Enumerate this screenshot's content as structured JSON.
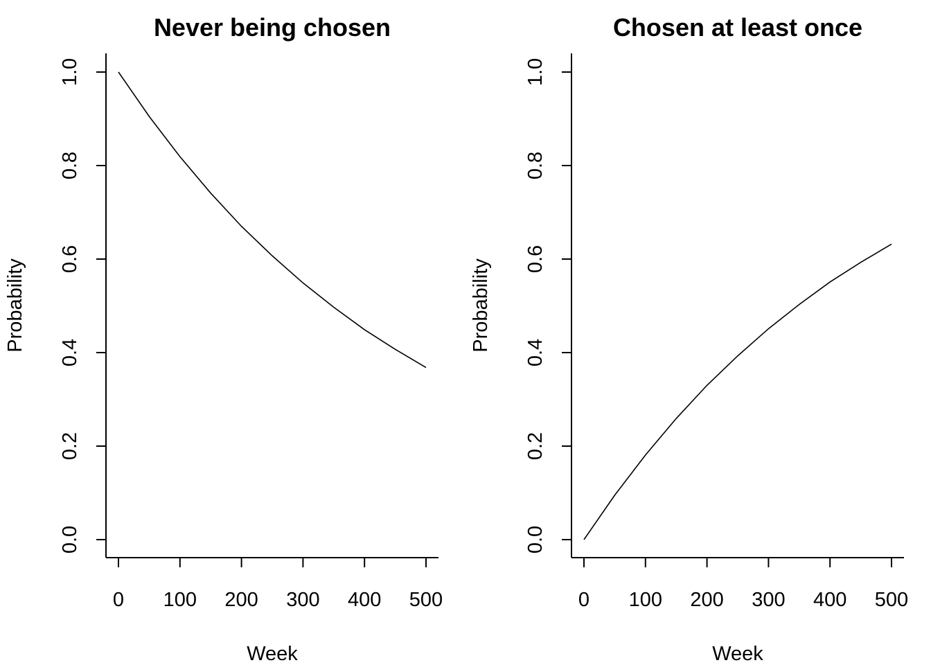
{
  "chart_data": [
    {
      "type": "line",
      "title": "Never being chosen",
      "xlabel": "Week",
      "ylabel": "Probability",
      "xlim": [
        0,
        500
      ],
      "ylim": [
        0,
        1
      ],
      "xticks": [
        0,
        100,
        200,
        300,
        400,
        500
      ],
      "yticks": [
        0.0,
        0.2,
        0.4,
        0.6,
        0.8,
        1.0
      ],
      "xtick_labels": [
        "0",
        "100",
        "200",
        "300",
        "400",
        "500"
      ],
      "ytick_labels": [
        "0.0",
        "0.2",
        "0.4",
        "0.6",
        "0.8",
        "1.0"
      ],
      "grid": false,
      "series": [
        {
          "x": [
            0,
            50,
            100,
            150,
            200,
            250,
            300,
            350,
            400,
            450,
            500
          ],
          "y": [
            1.0,
            0.905,
            0.819,
            0.741,
            0.67,
            0.607,
            0.549,
            0.497,
            0.449,
            0.407,
            0.368
          ]
        }
      ]
    },
    {
      "type": "line",
      "title": "Chosen at least once",
      "xlabel": "Week",
      "ylabel": "Probability",
      "xlim": [
        0,
        500
      ],
      "ylim": [
        0,
        1
      ],
      "xticks": [
        0,
        100,
        200,
        300,
        400,
        500
      ],
      "yticks": [
        0.0,
        0.2,
        0.4,
        0.6,
        0.8,
        1.0
      ],
      "xtick_labels": [
        "0",
        "100",
        "200",
        "300",
        "400",
        "500"
      ],
      "ytick_labels": [
        "0.0",
        "0.2",
        "0.4",
        "0.6",
        "0.8",
        "1.0"
      ],
      "grid": false,
      "series": [
        {
          "x": [
            0,
            50,
            100,
            150,
            200,
            250,
            300,
            350,
            400,
            450,
            500
          ],
          "y": [
            0.0,
            0.095,
            0.181,
            0.259,
            0.33,
            0.393,
            0.451,
            0.503,
            0.551,
            0.593,
            0.632
          ]
        }
      ]
    }
  ]
}
